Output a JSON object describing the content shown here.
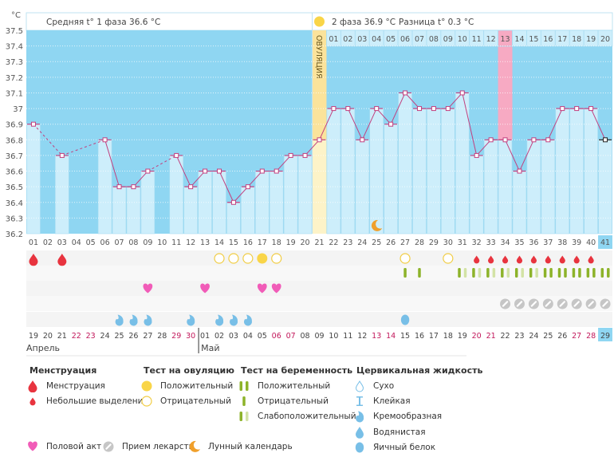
{
  "axis": {
    "unit": "°C",
    "y_ticks": [
      "37.5",
      "37.4",
      "37.3",
      "37.2",
      "37.1",
      "37",
      "36.9",
      "36.8",
      "36.7",
      "36.6",
      "36.5",
      "36.4",
      "36.3",
      "36.2"
    ]
  },
  "header": {
    "phase1": "Средняя t° 1 фаза 36.6 °C",
    "phase2": "2 фаза 36.9 °C",
    "difference": "Разница t° 0.3 °C",
    "ovulation_label": "ОВУЛЯЦИЯ"
  },
  "colors": {
    "sky": "#8fd6f2",
    "bar": "#cdeefb",
    "line": "#c2407f",
    "ovulation": "#fbe39b",
    "ovulation_light": "#fdf3c8",
    "highlight_pink": "#f7aac3",
    "current": "#8fd6f2"
  },
  "chart_data": {
    "type": "line",
    "title": "",
    "xlabel": "",
    "ylabel": "°C",
    "ylim": [
      36.2,
      37.5
    ],
    "grid": true,
    "x": [
      "01",
      "02",
      "03",
      "04",
      "05",
      "06",
      "07",
      "08",
      "09",
      "10",
      "11",
      "12",
      "13",
      "14",
      "15",
      "16",
      "17",
      "18",
      "19",
      "20",
      "21",
      "22",
      "23",
      "24",
      "25",
      "26",
      "27",
      "28",
      "29",
      "30",
      "31",
      "32",
      "33",
      "34",
      "35",
      "36",
      "37",
      "38",
      "39",
      "40",
      "41"
    ],
    "values": [
      36.9,
      null,
      36.7,
      null,
      null,
      36.8,
      36.5,
      36.5,
      36.6,
      null,
      36.7,
      36.5,
      36.6,
      36.6,
      36.4,
      36.5,
      36.6,
      36.6,
      36.7,
      36.7,
      36.8,
      37.0,
      37.0,
      36.8,
      37.0,
      36.9,
      37.1,
      37.0,
      37.0,
      37.0,
      37.1,
      36.7,
      36.8,
      36.8,
      36.6,
      36.8,
      36.8,
      37.0,
      37.0,
      37.0,
      36.8
    ],
    "ovulation_day": 21,
    "highlighted_day": 34,
    "current_day": 41,
    "phase2_day_labels": [
      "01",
      "02",
      "03",
      "04",
      "05",
      "06",
      "07",
      "08",
      "09",
      "10",
      "11",
      "12",
      "13",
      "14",
      "15",
      "16",
      "17",
      "18",
      "19",
      "20"
    ],
    "phase2_start_day": 22
  },
  "calendar": {
    "dates": [
      {
        "d": "19",
        "we": false
      },
      {
        "d": "20",
        "we": false
      },
      {
        "d": "21",
        "we": false
      },
      {
        "d": "22",
        "we": true
      },
      {
        "d": "23",
        "we": true
      },
      {
        "d": "24",
        "we": false
      },
      {
        "d": "25",
        "we": false
      },
      {
        "d": "26",
        "we": false
      },
      {
        "d": "27",
        "we": false
      },
      {
        "d": "28",
        "we": false
      },
      {
        "d": "29",
        "we": true
      },
      {
        "d": "30",
        "we": true
      },
      {
        "d": "01",
        "we": false
      },
      {
        "d": "02",
        "we": false
      },
      {
        "d": "03",
        "we": false
      },
      {
        "d": "04",
        "we": false
      },
      {
        "d": "05",
        "we": false
      },
      {
        "d": "06",
        "we": true
      },
      {
        "d": "07",
        "we": true
      },
      {
        "d": "08",
        "we": false
      },
      {
        "d": "09",
        "we": false
      },
      {
        "d": "10",
        "we": false
      },
      {
        "d": "11",
        "we": false
      },
      {
        "d": "12",
        "we": false
      },
      {
        "d": "13",
        "we": true
      },
      {
        "d": "14",
        "we": true
      },
      {
        "d": "15",
        "we": false
      },
      {
        "d": "16",
        "we": false
      },
      {
        "d": "17",
        "we": false
      },
      {
        "d": "18",
        "we": false
      },
      {
        "d": "19",
        "we": false
      },
      {
        "d": "20",
        "we": true
      },
      {
        "d": "21",
        "we": true
      },
      {
        "d": "22",
        "we": false
      },
      {
        "d": "23",
        "we": false
      },
      {
        "d": "24",
        "we": false
      },
      {
        "d": "25",
        "we": false
      },
      {
        "d": "26",
        "we": false
      },
      {
        "d": "27",
        "we": true
      },
      {
        "d": "28",
        "we": true
      },
      {
        "d": "29",
        "we": false
      }
    ],
    "months": [
      {
        "label": "Апрель",
        "start_day": 1
      },
      {
        "label": "Май",
        "start_day": 13
      }
    ]
  },
  "markers": {
    "menstruation": [
      {
        "day": 1,
        "type": "menstruation"
      },
      {
        "day": 3,
        "type": "menstruation"
      },
      {
        "day": 32,
        "type": "spotting"
      },
      {
        "day": 33,
        "type": "spotting"
      },
      {
        "day": 34,
        "type": "spotting"
      },
      {
        "day": 35,
        "type": "spotting"
      },
      {
        "day": 36,
        "type": "spotting"
      },
      {
        "day": 37,
        "type": "spotting"
      },
      {
        "day": 38,
        "type": "spotting"
      },
      {
        "day": 39,
        "type": "spotting"
      },
      {
        "day": 40,
        "type": "spotting"
      }
    ],
    "ovulation_tests": [
      {
        "day": 14,
        "result": "negative"
      },
      {
        "day": 15,
        "result": "negative"
      },
      {
        "day": 16,
        "result": "negative"
      },
      {
        "day": 17,
        "result": "positive"
      },
      {
        "day": 18,
        "result": "negative"
      },
      {
        "day": 27,
        "result": "negative"
      },
      {
        "day": 30,
        "result": "negative"
      }
    ],
    "pregnancy_tests": [
      {
        "day": 27,
        "result": "negative"
      },
      {
        "day": 28,
        "result": "negative"
      },
      {
        "day": 31,
        "result": "weak"
      },
      {
        "day": 32,
        "result": "weak"
      },
      {
        "day": 33,
        "result": "weak"
      },
      {
        "day": 34,
        "result": "weak"
      },
      {
        "day": 35,
        "result": "weak"
      },
      {
        "day": 36,
        "result": "weak"
      },
      {
        "day": 37,
        "result": "positive"
      },
      {
        "day": 38,
        "result": "positive"
      },
      {
        "day": 39,
        "result": "positive"
      },
      {
        "day": 40,
        "result": "positive"
      },
      {
        "day": 41,
        "result": "positive"
      }
    ],
    "intercourse": [
      9,
      13,
      17,
      18
    ],
    "medication": [
      34,
      35,
      36,
      37,
      38,
      39,
      40,
      41
    ],
    "cervical_fluid": [
      {
        "day": 7,
        "type": "creamy"
      },
      {
        "day": 8,
        "type": "creamy"
      },
      {
        "day": 9,
        "type": "creamy"
      },
      {
        "day": 12,
        "type": "creamy"
      },
      {
        "day": 14,
        "type": "creamy"
      },
      {
        "day": 15,
        "type": "creamy"
      },
      {
        "day": 16,
        "type": "creamy"
      },
      {
        "day": 27,
        "type": "egg_white"
      }
    ],
    "moon": [
      25
    ]
  },
  "legend": {
    "menstruation": {
      "title": "Менструация",
      "items": [
        {
          "icon": "menstruation",
          "label": "Менструация"
        },
        {
          "icon": "spotting",
          "label": "Небольшие выделения"
        }
      ]
    },
    "ovulation_test": {
      "title": "Тест на овуляцию",
      "items": [
        {
          "icon": "ovu-positive",
          "label": "Положительный"
        },
        {
          "icon": "ovu-negative",
          "label": "Отрицательный"
        }
      ]
    },
    "pregnancy_test": {
      "title": "Тест на беременность",
      "items": [
        {
          "icon": "preg-positive",
          "label": "Положительный"
        },
        {
          "icon": "preg-negative",
          "label": "Отрицательный"
        },
        {
          "icon": "preg-weak",
          "label": "Слабоположительный"
        }
      ]
    },
    "cervical_fluid": {
      "title": "Цервикальная жидкость",
      "items": [
        {
          "icon": "dry",
          "label": "Сухо"
        },
        {
          "icon": "sticky",
          "label": "Клейкая"
        },
        {
          "icon": "creamy",
          "label": "Кремообразная"
        },
        {
          "icon": "watery",
          "label": "Водянистая"
        },
        {
          "icon": "egg_white",
          "label": "Яичный белок"
        }
      ]
    },
    "other": [
      {
        "icon": "intercourse",
        "label": "Половой акт"
      },
      {
        "icon": "medication",
        "label": "Прием лекарств"
      },
      {
        "icon": "moon",
        "label": "Лунный календарь"
      }
    ]
  }
}
